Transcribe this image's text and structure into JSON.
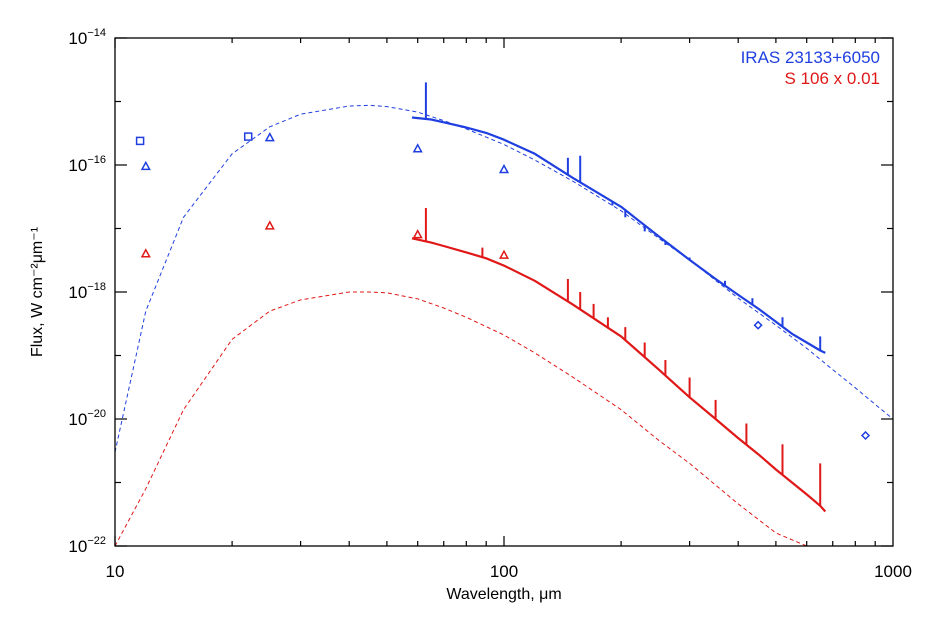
{
  "chart_data": {
    "type": "line",
    "x_scale": "log",
    "y_scale": "log",
    "xlim": [
      10,
      1000
    ],
    "ylim": [
      1e-22,
      1e-14
    ],
    "xlabel": "Wavelength, μm",
    "ylabel": "Flux, W cm⁻²μm⁻¹",
    "x_ticks": [
      {
        "value": 10,
        "label": "10"
      },
      {
        "value": 100,
        "label": "100"
      },
      {
        "value": 1000,
        "label": "1000"
      }
    ],
    "y_ticks": [
      {
        "value": 1e-22,
        "base": "10",
        "exp": "−22"
      },
      {
        "value": 1e-20,
        "base": "10",
        "exp": "−20"
      },
      {
        "value": 1e-18,
        "base": "10",
        "exp": "−18"
      },
      {
        "value": 1e-16,
        "base": "10",
        "exp": "−16"
      },
      {
        "value": 1e-14,
        "base": "10",
        "exp": "−14"
      }
    ],
    "legend": {
      "placement": "top-right",
      "entries": [
        {
          "label": "IRAS 23133+6050",
          "color": "#1f3fe0"
        },
        {
          "label": "S 106 x 0.01",
          "color": "#e01818"
        }
      ]
    },
    "series": [
      {
        "name": "IRAS 23133+6050",
        "color": "#1f3fe0",
        "model_fit": [
          [
            10,
            3e-21
          ],
          [
            12,
            5e-19
          ],
          [
            15,
            1.5e-17
          ],
          [
            20,
            1.5e-16
          ],
          [
            25,
            4e-16
          ],
          [
            30,
            6.3e-16
          ],
          [
            40,
            8.5e-16
          ],
          [
            45,
            8.7e-16
          ],
          [
            50,
            8.3e-16
          ],
          [
            60,
            6.8e-16
          ],
          [
            70,
            5e-16
          ],
          [
            80,
            3.7e-16
          ],
          [
            100,
            2.1e-16
          ],
          [
            120,
            1.2e-16
          ],
          [
            150,
            5.6e-17
          ],
          [
            200,
            1.9e-17
          ],
          [
            250,
            7e-18
          ],
          [
            300,
            3.2e-18
          ],
          [
            400,
            8e-19
          ],
          [
            500,
            3e-19
          ],
          [
            600,
            1.3e-19
          ],
          [
            700,
            6e-20
          ],
          [
            800,
            3.1e-20
          ],
          [
            900,
            1.7e-20
          ],
          [
            1000,
            1e-20
          ]
        ],
        "spectrum": [
          [
            58,
            5.6e-16
          ],
          [
            65,
            5.2e-16
          ],
          [
            70,
            4.7e-16
          ],
          [
            80,
            3.9e-16
          ],
          [
            90,
            3.2e-16
          ],
          [
            100,
            2.5e-16
          ],
          [
            120,
            1.5e-16
          ],
          [
            150,
            6.3e-17
          ],
          [
            200,
            2.2e-17
          ],
          [
            250,
            7.5e-18
          ],
          [
            300,
            3.2e-18
          ],
          [
            350,
            1.6e-18
          ],
          [
            400,
            9e-19
          ],
          [
            450,
            5.5e-19
          ],
          [
            500,
            3.4e-19
          ],
          [
            550,
            2.2e-19
          ],
          [
            600,
            1.6e-19
          ],
          [
            650,
            1.2e-19
          ],
          [
            670,
            1.1e-19
          ]
        ],
        "emission_lines": [
          [
            63,
            2e-15
          ],
          [
            146,
            1.3e-16
          ],
          [
            157,
            1.4e-16
          ],
          [
            170,
            4e-17
          ],
          [
            190,
            2.3e-17
          ],
          [
            205,
            1.5e-17
          ],
          [
            230,
            9e-18
          ],
          [
            260,
            5.5e-18
          ],
          [
            300,
            3.5e-18
          ],
          [
            325,
            2.3e-18
          ],
          [
            370,
            1.5e-18
          ],
          [
            435,
            8e-19
          ],
          [
            520,
            4e-19
          ],
          [
            650,
            2e-19
          ]
        ],
        "photometry_squares": [
          [
            11.6,
            2.4e-16
          ],
          [
            22.0,
            2.8e-16
          ]
        ],
        "photometry_triangles": [
          [
            12.0,
            9.5e-17
          ],
          [
            25.0,
            2.7e-16
          ],
          [
            60.0,
            1.8e-16
          ],
          [
            100.0,
            8.5e-17
          ]
        ],
        "photometry_diamonds": [
          [
            450,
            3e-19
          ],
          [
            850,
            5.5e-21
          ]
        ]
      },
      {
        "name": "S 106 x 0.01",
        "color": "#e01818",
        "model_fit": [
          [
            10,
            1e-23
          ],
          [
            12,
            8e-22
          ],
          [
            15,
            1.4e-20
          ],
          [
            20,
            1.8e-19
          ],
          [
            25,
            5e-19
          ],
          [
            30,
            7.5e-19
          ],
          [
            40,
            1e-18
          ],
          [
            45,
            1e-18
          ],
          [
            50,
            9.7e-19
          ],
          [
            60,
            7.8e-19
          ],
          [
            70,
            5.6e-19
          ],
          [
            80,
            4e-19
          ],
          [
            100,
            2.1e-19
          ],
          [
            120,
            1.1e-19
          ],
          [
            150,
            4.6e-20
          ],
          [
            200,
            1.4e-20
          ],
          [
            250,
            4.6e-21
          ],
          [
            300,
            2e-21
          ],
          [
            400,
            4.6e-22
          ],
          [
            500,
            1.6e-22
          ],
          [
            600,
            6.3e-23
          ],
          [
            700,
            2.7e-23
          ],
          [
            800,
            1.3e-23
          ]
        ],
        "spectrum": [
          [
            58,
            7e-18
          ],
          [
            65,
            6e-18
          ],
          [
            70,
            5.3e-18
          ],
          [
            80,
            4.2e-18
          ],
          [
            90,
            3.4e-18
          ],
          [
            100,
            2.6e-18
          ],
          [
            120,
            1.5e-18
          ],
          [
            150,
            6.4e-19
          ],
          [
            200,
            2e-19
          ],
          [
            250,
            6e-20
          ],
          [
            300,
            2.2e-20
          ],
          [
            350,
            1e-20
          ],
          [
            400,
            5e-21
          ],
          [
            450,
            2.8e-21
          ],
          [
            500,
            1.6e-21
          ],
          [
            550,
            1e-21
          ],
          [
            600,
            6.5e-22
          ],
          [
            650,
            4.3e-22
          ],
          [
            670,
            3.5e-22
          ]
        ],
        "emission_lines": [
          [
            63,
            2.1e-17
          ],
          [
            88,
            5e-18
          ],
          [
            146,
            1.6e-18
          ],
          [
            157,
            1e-18
          ],
          [
            170,
            6.5e-19
          ],
          [
            185,
            4e-19
          ],
          [
            205,
            2.8e-19
          ],
          [
            230,
            1.6e-19
          ],
          [
            260,
            8.5e-20
          ],
          [
            300,
            4.5e-20
          ],
          [
            350,
            2e-20
          ],
          [
            420,
            8.5e-21
          ],
          [
            520,
            4e-21
          ],
          [
            650,
            2e-21
          ]
        ],
        "photometry_squares": [],
        "photometry_triangles": [
          [
            12.0,
            4e-18
          ],
          [
            25.0,
            1.1e-17
          ],
          [
            60.0,
            8e-18
          ],
          [
            100.0,
            3.8e-18
          ]
        ],
        "photometry_diamonds": []
      }
    ]
  }
}
